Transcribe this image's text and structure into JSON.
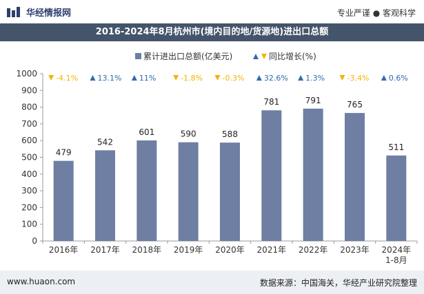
{
  "header": {
    "logo_text": "华经情报网",
    "tagline": "专业严谨 ● 客观科学"
  },
  "chart_data": {
    "type": "bar",
    "title": "2016-2024年8月杭州市(境内目的地/货源地)进出口总额",
    "categories": [
      "2016年",
      "2017年",
      "2018年",
      "2019年",
      "2020年",
      "2021年",
      "2022年",
      "2023年",
      "2024年1-8月"
    ],
    "series": [
      {
        "name": "累计进出口总额(亿美元)",
        "values": [
          479,
          542,
          601,
          590,
          588,
          781,
          791,
          765,
          511
        ],
        "color": "#6e7fa3"
      },
      {
        "name": "同比增长(%)",
        "values": [
          -4.1,
          13.1,
          11,
          -1.8,
          -0.3,
          32.6,
          1.3,
          -3.4,
          0.6
        ]
      }
    ],
    "growth_labels": [
      "-4.1%",
      "13.1%",
      "11%",
      "-1.8%",
      "-0.3%",
      "32.6%",
      "1.3%",
      "-3.4%",
      "0.6%"
    ],
    "ylim": [
      0,
      1000
    ],
    "yticks": [
      0,
      100,
      200,
      300,
      400,
      500,
      600,
      700,
      800,
      900,
      1000
    ],
    "up_color": "#2e6ab0",
    "down_color": "#f2b400",
    "legend_position": "top"
  },
  "footer": {
    "url": "www.huaon.com",
    "source": "数据来源：中国海关，华经产业研究院整理"
  }
}
